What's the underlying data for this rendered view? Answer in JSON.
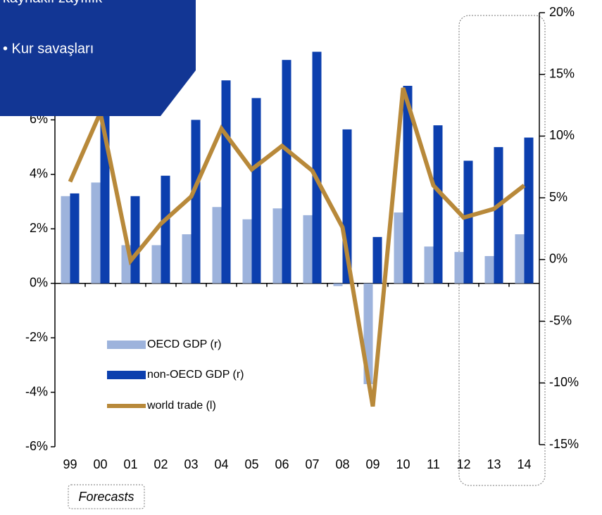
{
  "chart_data": {
    "type": "bar",
    "categories": [
      "99",
      "00",
      "01",
      "02",
      "03",
      "04",
      "05",
      "06",
      "07",
      "08",
      "09",
      "10",
      "11",
      "12",
      "13",
      "14"
    ],
    "series": [
      {
        "name": "OECD GDP (r)",
        "type": "bar",
        "color": "#9db3dc",
        "values": [
          3.2,
          3.7,
          1.4,
          1.4,
          1.8,
          2.8,
          2.35,
          2.75,
          2.5,
          -0.1,
          -3.7,
          2.6,
          1.35,
          1.15,
          1.0,
          1.8
        ]
      },
      {
        "name": "non-OECD GDP (r)",
        "type": "bar",
        "color": "#0c3fae",
        "values": [
          3.3,
          6.2,
          3.2,
          3.95,
          6.0,
          7.45,
          6.8,
          8.2,
          8.5,
          5.65,
          1.7,
          7.25,
          5.8,
          4.5,
          5.0,
          5.35
        ]
      },
      {
        "name": "world trade (l)",
        "type": "line",
        "axis": "y2",
        "color": "#b8893a",
        "values": [
          6.3,
          11.9,
          -0.1,
          2.9,
          5.1,
          10.6,
          7.3,
          9.2,
          7.2,
          2.6,
          -11.9,
          13.9,
          6.0,
          3.4,
          4.1,
          6.0
        ]
      }
    ],
    "ylim": [
      -6,
      10
    ],
    "yticks": [
      {
        "value": -6,
        "label": "-6%"
      },
      {
        "value": -4,
        "label": "-4%"
      },
      {
        "value": -2,
        "label": "-2%"
      },
      {
        "value": 0,
        "label": "0%"
      },
      {
        "value": 2,
        "label": "2%"
      },
      {
        "value": 4,
        "label": "4%"
      },
      {
        "value": 6,
        "label": "6%"
      }
    ],
    "y2lim": [
      -15,
      20
    ],
    "y2ticks": [
      {
        "value": -15,
        "label": "-15%"
      },
      {
        "value": -10,
        "label": "-10%"
      },
      {
        "value": -5,
        "label": "-5%"
      },
      {
        "value": 0,
        "label": "0%"
      },
      {
        "value": 5,
        "label": "5%"
      },
      {
        "value": 10,
        "label": "10%"
      },
      {
        "value": 15,
        "label": "15%"
      },
      {
        "value": 20,
        "label": "20%"
      }
    ],
    "annotations": [
      "kaynaklı zayıflık",
      "• Kur savaşları",
      "Forecasts"
    ],
    "grid": false
  }
}
